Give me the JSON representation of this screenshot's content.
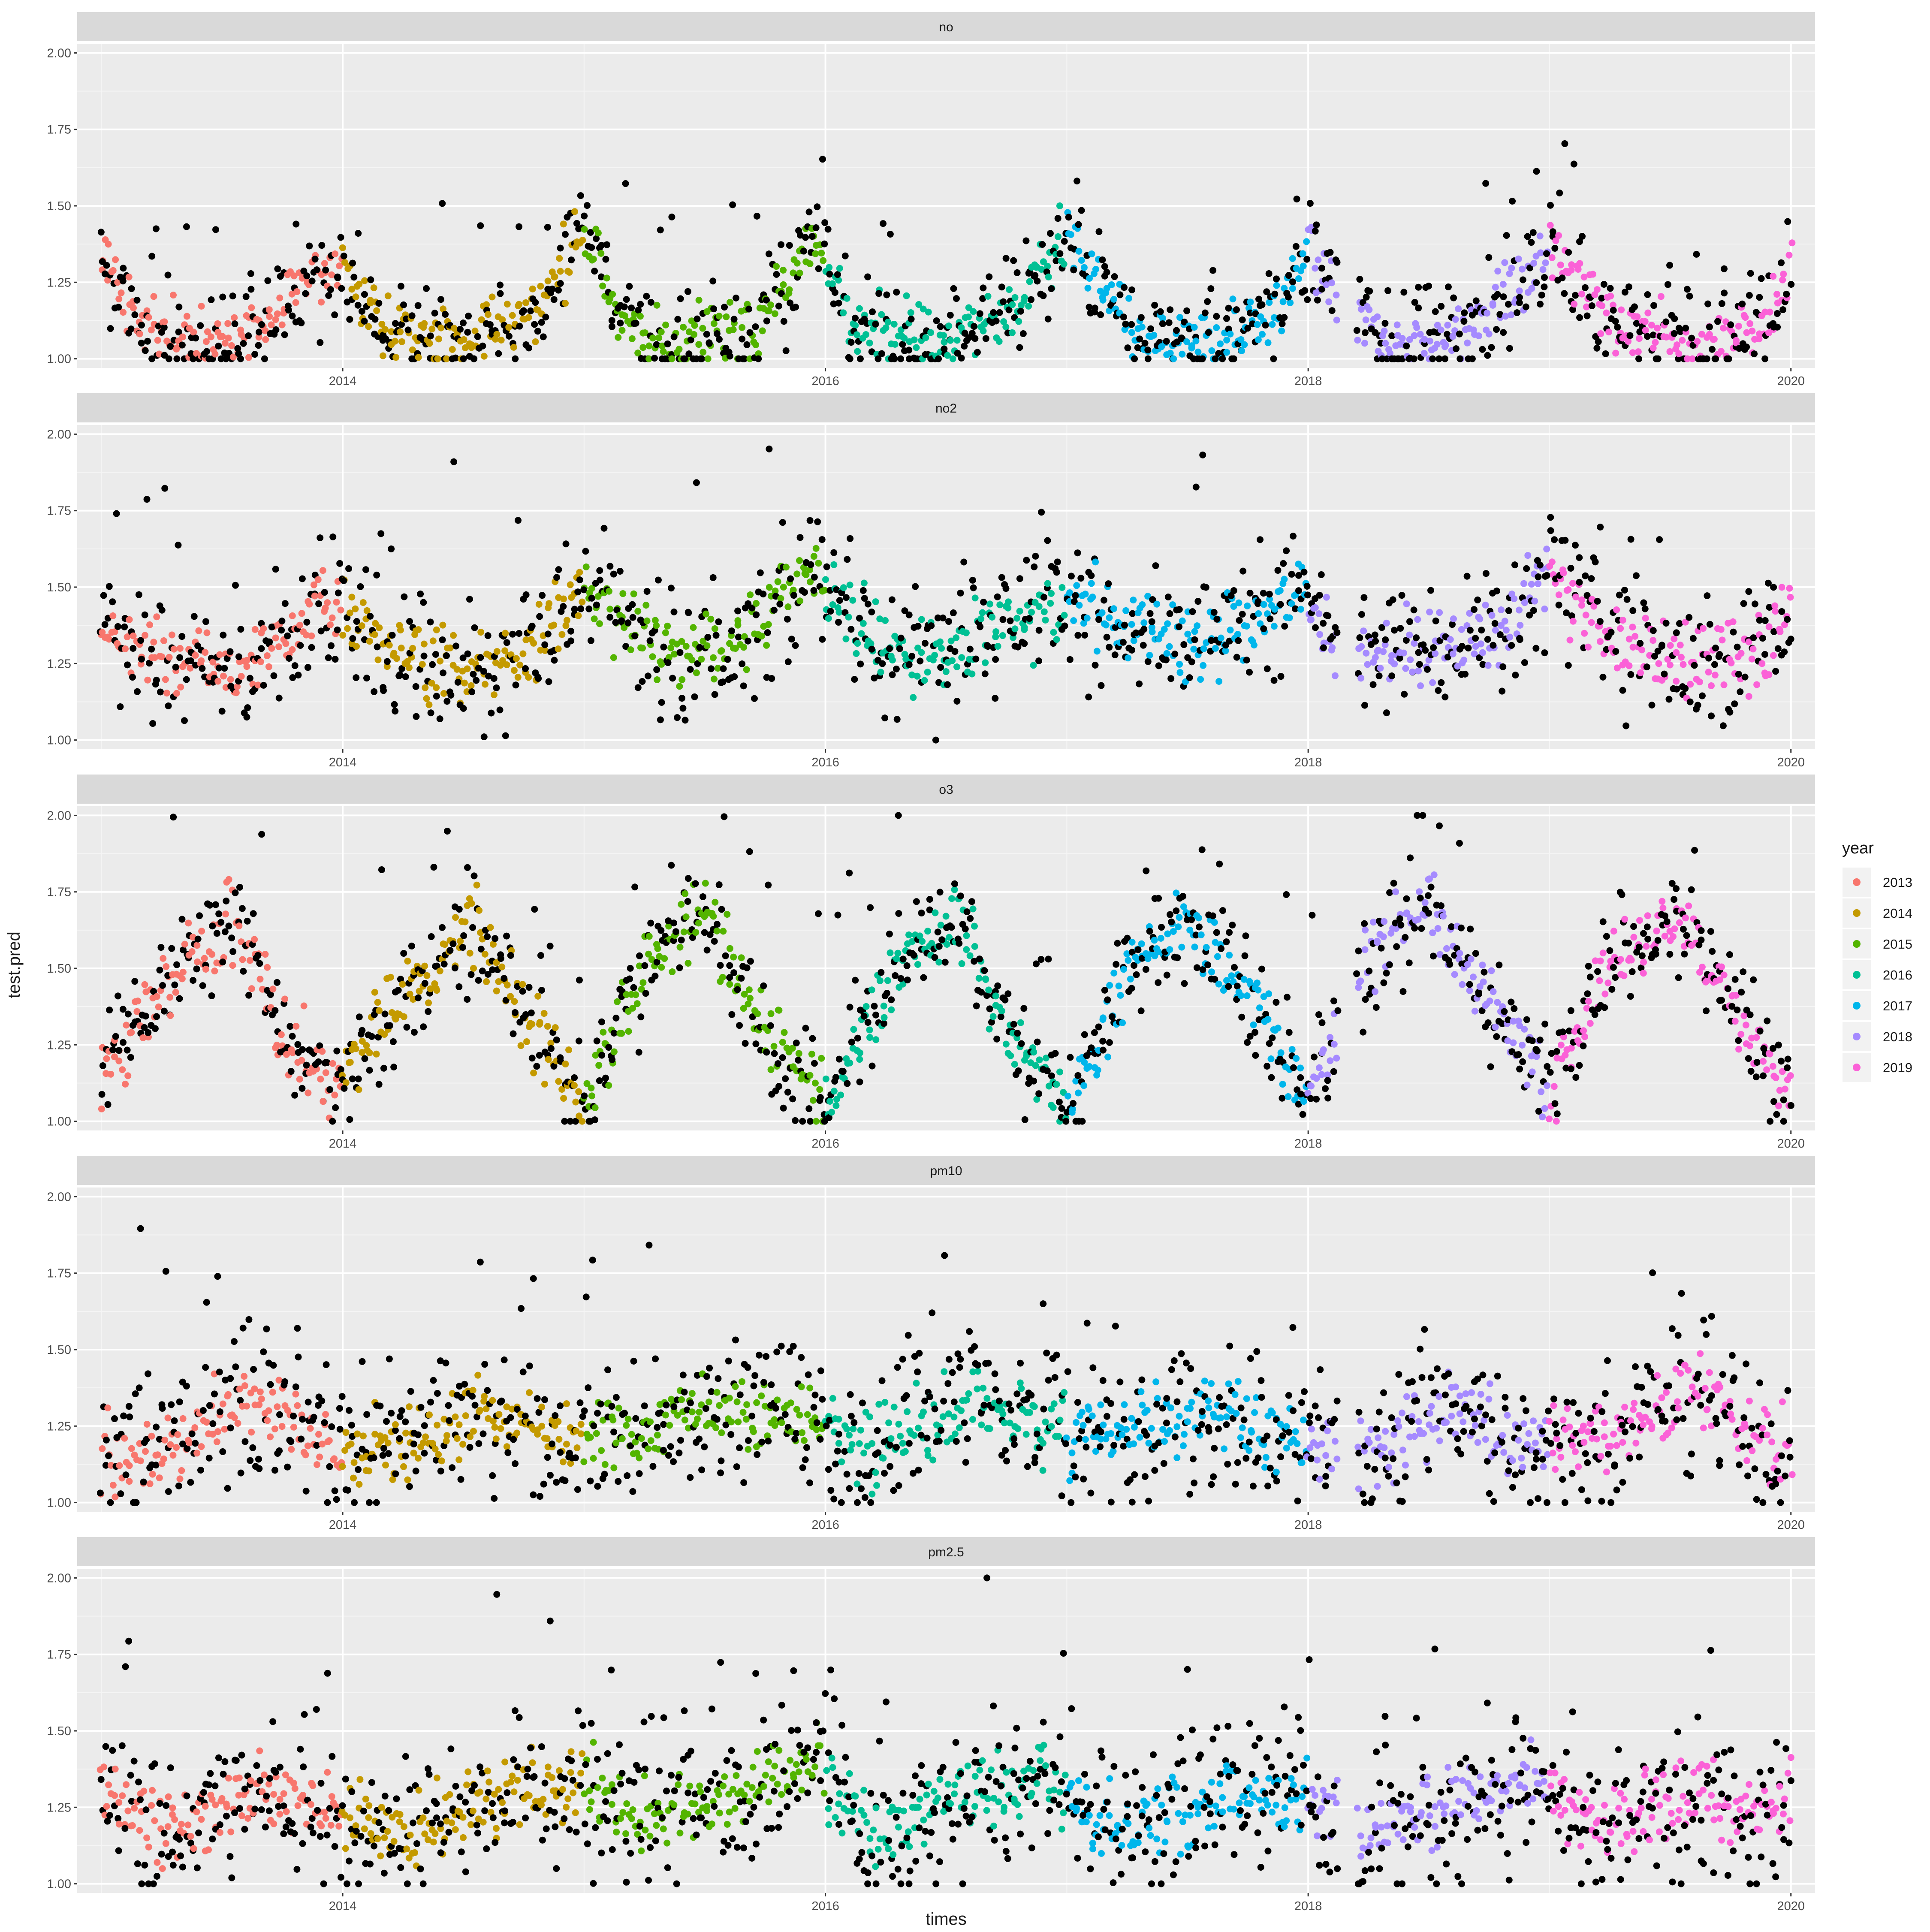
{
  "chart_data": {
    "type": "scatter",
    "faceted": true,
    "xlabel": "times",
    "ylabel": "test.pred",
    "x_ticks": [
      "2014",
      "2016",
      "2018",
      "2020"
    ],
    "x_range": [
      2012.9,
      2020.1
    ],
    "ylim": [
      0.97,
      2.03
    ],
    "y_ticks": [
      "1.00",
      "1.25",
      "1.50",
      "1.75",
      "2.00"
    ],
    "grid": true,
    "legend": {
      "title": "year",
      "placement": "right",
      "entries": [
        {
          "label": "2013",
          "color": "#F8766D"
        },
        {
          "label": "2014",
          "color": "#C49A00"
        },
        {
          "label": "2015",
          "color": "#53B400"
        },
        {
          "label": "2016",
          "color": "#00C094"
        },
        {
          "label": "2017",
          "color": "#00B6EB"
        },
        {
          "label": "2018",
          "color": "#A58AFF"
        },
        {
          "label": "2019",
          "color": "#FB61D7"
        }
      ]
    },
    "other_series_color": "#000000",
    "panels": [
      {
        "name": "no",
        "anchors_x": [
          2013.0,
          2013.15,
          2013.4,
          2013.7,
          2013.85,
          2014.0,
          2014.2,
          2014.5,
          2014.8,
          2015.0,
          2015.15,
          2015.4,
          2015.7,
          2015.95,
          2016.1,
          2016.5,
          2016.8,
          2017.0,
          2017.3,
          2017.6,
          2017.85,
          2018.0,
          2018.3,
          2018.6,
          2018.85,
          2019.0,
          2019.3,
          2019.6,
          2019.9,
          2020.0
        ],
        "anchors_y": [
          1.35,
          1.1,
          1.06,
          1.1,
          1.3,
          1.28,
          1.1,
          1.05,
          1.15,
          1.42,
          1.12,
          1.04,
          1.1,
          1.4,
          1.12,
          1.05,
          1.18,
          1.4,
          1.08,
          1.05,
          1.15,
          1.35,
          1.05,
          1.07,
          1.22,
          1.35,
          1.1,
          1.04,
          1.12,
          1.3
        ],
        "spread": 0.05,
        "black_spread": 0.09
      },
      {
        "name": "no2",
        "anchors_x": [
          2013.0,
          2013.3,
          2013.6,
          2013.95,
          2014.2,
          2014.5,
          2014.8,
          2015.0,
          2015.3,
          2015.6,
          2015.95,
          2016.2,
          2016.5,
          2016.8,
          2017.0,
          2017.3,
          2017.6,
          2017.95,
          2018.2,
          2018.5,
          2018.8,
          2019.0,
          2019.3,
          2019.6,
          2019.9,
          2020.0
        ],
        "anchors_y": [
          1.4,
          1.25,
          1.25,
          1.45,
          1.28,
          1.22,
          1.32,
          1.5,
          1.3,
          1.3,
          1.55,
          1.32,
          1.28,
          1.4,
          1.45,
          1.35,
          1.32,
          1.48,
          1.28,
          1.28,
          1.35,
          1.55,
          1.3,
          1.25,
          1.3,
          1.45
        ],
        "spread": 0.06,
        "black_spread": 0.11
      },
      {
        "name": "o3",
        "anchors_x": [
          2013.0,
          2013.25,
          2013.55,
          2013.75,
          2013.95,
          2014.25,
          2014.55,
          2014.75,
          2015.0,
          2015.25,
          2015.5,
          2015.75,
          2016.0,
          2016.25,
          2016.55,
          2016.75,
          2017.0,
          2017.25,
          2017.5,
          2017.75,
          2018.0,
          2018.25,
          2018.5,
          2018.75,
          2019.0,
          2019.25,
          2019.5,
          2019.75,
          2020.0
        ],
        "anchors_y": [
          1.1,
          1.45,
          1.65,
          1.3,
          1.1,
          1.4,
          1.65,
          1.35,
          1.05,
          1.5,
          1.7,
          1.3,
          1.05,
          1.45,
          1.7,
          1.3,
          1.05,
          1.45,
          1.68,
          1.4,
          1.08,
          1.55,
          1.7,
          1.4,
          1.1,
          1.5,
          1.68,
          1.4,
          1.05
        ],
        "spread": 0.06,
        "black_spread": 0.09
      },
      {
        "name": "pm10",
        "anchors_x": [
          2013.0,
          2013.3,
          2013.6,
          2013.95,
          2014.2,
          2014.6,
          2014.9,
          2015.2,
          2015.6,
          2015.95,
          2016.2,
          2016.6,
          2016.9,
          2017.2,
          2017.6,
          2017.95,
          2018.2,
          2018.6,
          2018.9,
          2019.2,
          2019.6,
          2019.95,
          2020.0
        ],
        "anchors_y": [
          1.15,
          1.18,
          1.35,
          1.2,
          1.15,
          1.3,
          1.22,
          1.22,
          1.32,
          1.25,
          1.18,
          1.35,
          1.25,
          1.22,
          1.3,
          1.2,
          1.12,
          1.32,
          1.18,
          1.22,
          1.38,
          1.15,
          1.2
        ],
        "spread": 0.06,
        "black_spread": 0.12
      },
      {
        "name": "pm2.5",
        "anchors_x": [
          2013.0,
          2013.3,
          2013.6,
          2013.95,
          2014.3,
          2014.6,
          2014.95,
          2015.2,
          2015.6,
          2015.95,
          2016.2,
          2016.6,
          2016.9,
          2017.2,
          2017.6,
          2017.95,
          2018.2,
          2018.6,
          2018.9,
          2019.2,
          2019.6,
          2019.95,
          2020.0
        ],
        "anchors_y": [
          1.3,
          1.18,
          1.28,
          1.25,
          1.15,
          1.28,
          1.35,
          1.2,
          1.28,
          1.4,
          1.15,
          1.3,
          1.35,
          1.18,
          1.28,
          1.3,
          1.15,
          1.28,
          1.35,
          1.18,
          1.28,
          1.2,
          1.35
        ],
        "spread": 0.06,
        "black_spread": 0.12
      }
    ]
  }
}
